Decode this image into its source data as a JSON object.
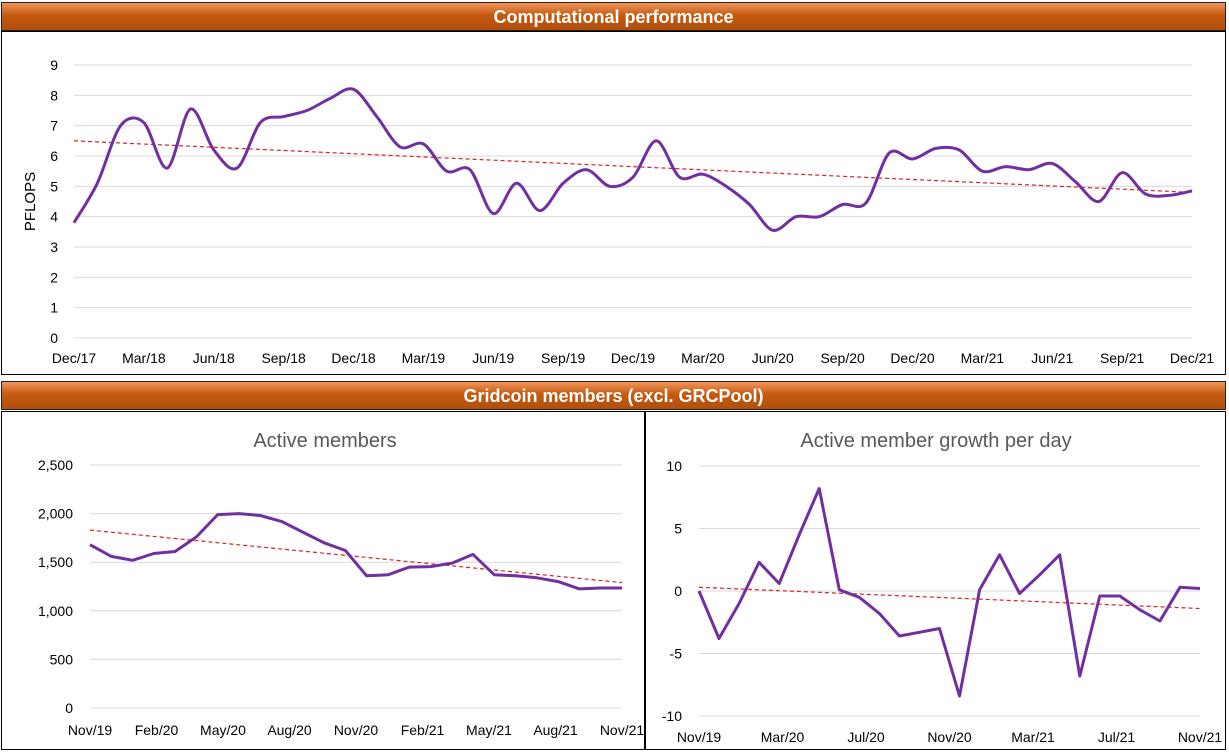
{
  "section_titles": {
    "top": "Computational performance",
    "bottom": "Gridcoin members (excl. GRCPool)"
  },
  "colors": {
    "banner": "#c55a11",
    "line": "#7030a0",
    "trend": "#e02020",
    "grid": "#d9d9d9"
  },
  "chart_data": [
    {
      "type": "line",
      "title": "",
      "ylabel": "PFLOPS",
      "ylim": [
        0,
        9
      ],
      "yticks": [
        "0",
        "1",
        "2",
        "3",
        "4",
        "5",
        "6",
        "7",
        "8",
        "9"
      ],
      "xlim": [
        "Dec/17",
        "Dec/21"
      ],
      "xticks": [
        "Dec/17",
        "Mar/18",
        "Jun/18",
        "Sep/18",
        "Dec/18",
        "Mar/19",
        "Jun/19",
        "Sep/19",
        "Dec/19",
        "Mar/20",
        "Jun/20",
        "Sep/20",
        "Dec/20",
        "Mar/21",
        "Jun/21",
        "Sep/21",
        "Dec/21"
      ],
      "grid": true,
      "x_months": [
        0,
        1,
        2,
        3,
        4,
        5,
        6,
        7,
        8,
        9,
        10,
        11,
        12,
        13,
        14,
        15,
        16,
        17,
        18,
        19,
        20,
        21,
        22,
        23,
        24,
        25,
        26,
        27,
        28,
        29,
        30,
        31,
        32,
        33,
        34,
        35,
        36,
        37,
        38,
        39,
        40,
        41,
        42,
        43,
        44,
        45,
        46,
        47,
        48
      ],
      "values": [
        3.8,
        5.1,
        7.0,
        7.1,
        5.6,
        7.55,
        6.2,
        5.6,
        7.1,
        7.3,
        7.5,
        7.9,
        8.2,
        7.3,
        6.3,
        6.4,
        5.5,
        5.55,
        4.1,
        5.1,
        4.2,
        5.1,
        5.55,
        5.0,
        5.3,
        6.5,
        5.3,
        5.4,
        5.0,
        4.4,
        3.55,
        4.0,
        4.0,
        4.4,
        4.45,
        6.1,
        5.9,
        6.25,
        6.2,
        5.5,
        5.65,
        5.55,
        5.75,
        5.15,
        4.5,
        5.45,
        4.75,
        4.7,
        4.85
      ],
      "trend": [
        6.5,
        4.8
      ]
    },
    {
      "type": "line",
      "title": "Active members",
      "ylim": [
        0,
        2500
      ],
      "yticks": [
        "0",
        "500",
        "1,000",
        "1,500",
        "2,000",
        "2,500"
      ],
      "xlim": [
        "Nov/19",
        "Dec/21"
      ],
      "xticks": [
        "Nov/19",
        "Feb/20",
        "May/20",
        "Aug/20",
        "Nov/20",
        "Feb/21",
        "May/21",
        "Aug/21",
        "Nov/21"
      ],
      "grid": true,
      "x_months": [
        0,
        1,
        2,
        3,
        4,
        5,
        6,
        7,
        8,
        9,
        10,
        11,
        12,
        13,
        14,
        15,
        16,
        17,
        18,
        19,
        20,
        21,
        22,
        23,
        24,
        25
      ],
      "values": [
        1680,
        1560,
        1520,
        1590,
        1610,
        1760,
        1990,
        2000,
        1980,
        1920,
        1810,
        1700,
        1620,
        1360,
        1370,
        1450,
        1455,
        1490,
        1580,
        1370,
        1360,
        1340,
        1300,
        1225,
        1235,
        1235
      ],
      "trend": [
        1830,
        1290
      ]
    },
    {
      "type": "line",
      "title": "Active member growth per day",
      "ylim": [
        -10,
        10
      ],
      "yticks": [
        "-10",
        "-5",
        "0",
        "5",
        "10"
      ],
      "xlim": [
        "Nov/19",
        "Dec/21"
      ],
      "xticks": [
        "Nov/19",
        "Mar/20",
        "Jul/20",
        "Nov/20",
        "Mar/21",
        "Jul/21",
        "Nov/21"
      ],
      "grid": true,
      "x_months": [
        0,
        1,
        2,
        3,
        4,
        5,
        6,
        7,
        8,
        9,
        10,
        11,
        12,
        13,
        14,
        15,
        16,
        17,
        18,
        19,
        20,
        21,
        22,
        23,
        24,
        25
      ],
      "values": [
        0.0,
        -3.8,
        -1.0,
        2.3,
        0.6,
        4.5,
        8.2,
        0.1,
        -0.5,
        -1.8,
        -3.6,
        -3.3,
        -3.0,
        -8.4,
        0.1,
        2.9,
        -0.2,
        1.3,
        2.9,
        -6.8,
        -0.4,
        -0.4,
        -1.5,
        -2.4,
        0.3,
        0.2
      ],
      "trend": [
        0.3,
        -1.4
      ]
    }
  ]
}
